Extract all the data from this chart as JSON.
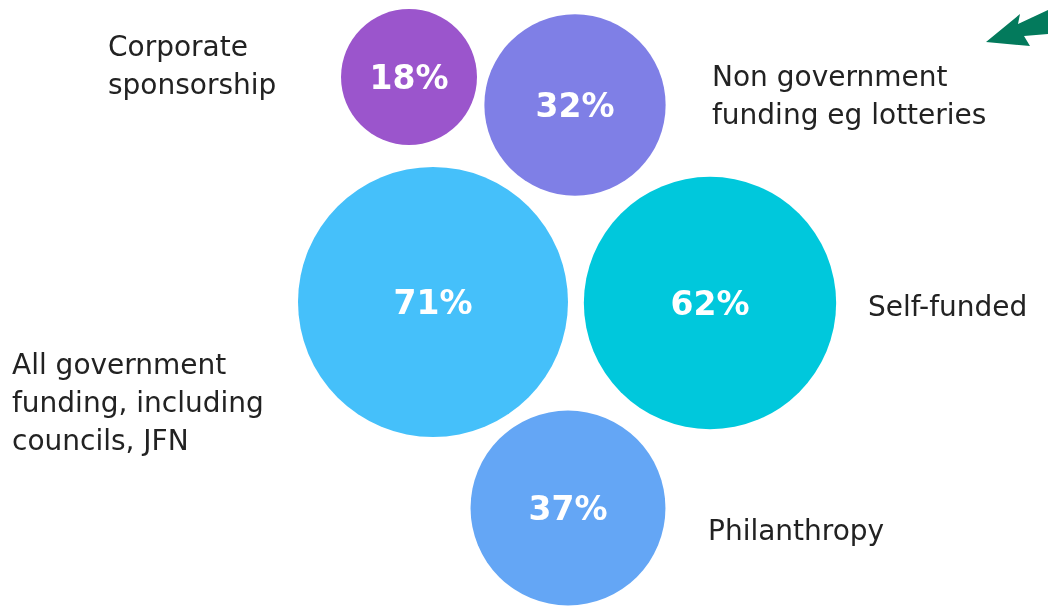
{
  "chart_data": {
    "type": "other",
    "categories": [
      "Corporate sponsorship",
      "Non government funding eg lotteries",
      "All government funding, including councils, JFN",
      "Self-funded",
      "Philanthropy"
    ],
    "values": [
      18,
      32,
      71,
      62,
      37
    ],
    "value_labels": [
      "18%",
      "32%",
      "71%",
      "62%",
      "37%"
    ],
    "colors": [
      "#9b55cc",
      "#7f7fe6",
      "#45c0fa",
      "#00c8dc",
      "#64a6f5"
    ]
  }
}
